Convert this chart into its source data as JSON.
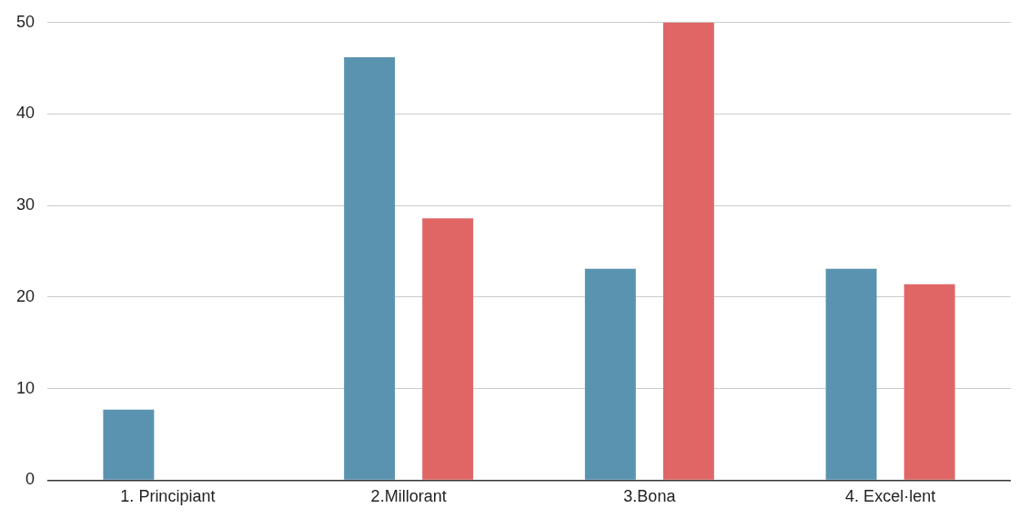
{
  "chart_data": {
    "type": "bar",
    "categories": [
      "1. Principiant",
      "2.Millorant",
      "3.Bona",
      "4. Excel·lent"
    ],
    "series": [
      {
        "color": "#5a93b0",
        "values": [
          7.7,
          46.2,
          23.1,
          23.1
        ]
      },
      {
        "color": "#e06666",
        "values": [
          0,
          28.6,
          50,
          21.4
        ]
      }
    ],
    "ylim": [
      0,
      50
    ],
    "yticks": [
      0,
      10,
      20,
      30,
      40,
      50
    ],
    "grid": "y",
    "legend": false
  }
}
